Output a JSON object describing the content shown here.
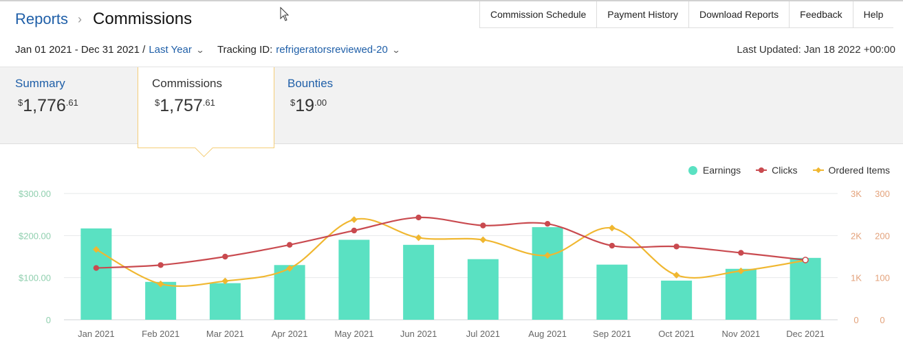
{
  "breadcrumb": {
    "root": "Reports",
    "separator": "›",
    "current": "Commissions"
  },
  "top_nav": [
    "Commission Schedule",
    "Payment History",
    "Download Reports",
    "Feedback",
    "Help"
  ],
  "filters": {
    "date_range": "Jan 01 2021 - Dec 31 2021 /",
    "period": "Last Year",
    "tracking_label": "Tracking ID:",
    "tracking_id": "refrigeratorsreviewed-20",
    "last_updated": "Last Updated: Jan 18 2022 +00:00"
  },
  "tabs": [
    {
      "label": "Summary",
      "currency": "$",
      "whole": "1,776",
      "cents": ".61",
      "active": false
    },
    {
      "label": "Commissions",
      "currency": "$",
      "whole": "1,757",
      "cents": ".61",
      "active": true
    },
    {
      "label": "Bounties",
      "currency": "$",
      "whole": "19",
      "cents": ".00",
      "active": false
    }
  ],
  "legend": {
    "earnings": "Earnings",
    "clicks": "Clicks",
    "ordered": "Ordered Items"
  },
  "colors": {
    "earnings": "#5ae1c2",
    "clicks": "#c94a4f",
    "ordered": "#f0b730",
    "link": "#1f5fa8",
    "accent_border": "#f5cd76"
  },
  "chart_data": {
    "type": "bar",
    "categories": [
      "Jan 2021",
      "Feb 2021",
      "Mar 2021",
      "Apr 2021",
      "May 2021",
      "Jun 2021",
      "Jul 2021",
      "Aug 2021",
      "Sep 2021",
      "Oct 2021",
      "Nov 2021",
      "Dec 2021"
    ],
    "series": [
      {
        "name": "Earnings",
        "type": "bar",
        "axis": "left",
        "values": [
          217,
          90,
          87,
          130,
          190,
          178,
          144,
          220,
          131,
          93,
          121,
          147
        ]
      },
      {
        "name": "Clicks",
        "type": "line",
        "axis": "right-clicks",
        "values": [
          1230,
          1300,
          1500,
          1780,
          2120,
          2430,
          2240,
          2280,
          1760,
          1740,
          1590,
          1420
        ]
      },
      {
        "name": "Ordered Items",
        "type": "line",
        "axis": "right-items",
        "values": [
          167,
          85,
          92,
          122,
          238,
          195,
          190,
          153,
          218,
          106,
          116,
          141
        ]
      }
    ],
    "y_left": {
      "ticks": [
        "0",
        "$100.00",
        "$200.00",
        "$300.00"
      ],
      "range": [
        0,
        300
      ]
    },
    "y_right_clicks": {
      "ticks": [
        "0",
        "1K",
        "2K",
        "3K"
      ],
      "range": [
        0,
        3000
      ]
    },
    "y_right_items": {
      "ticks": [
        "0",
        "100",
        "200",
        "300"
      ],
      "range": [
        0,
        300
      ]
    },
    "grid": true,
    "legend_position": "top-right"
  }
}
